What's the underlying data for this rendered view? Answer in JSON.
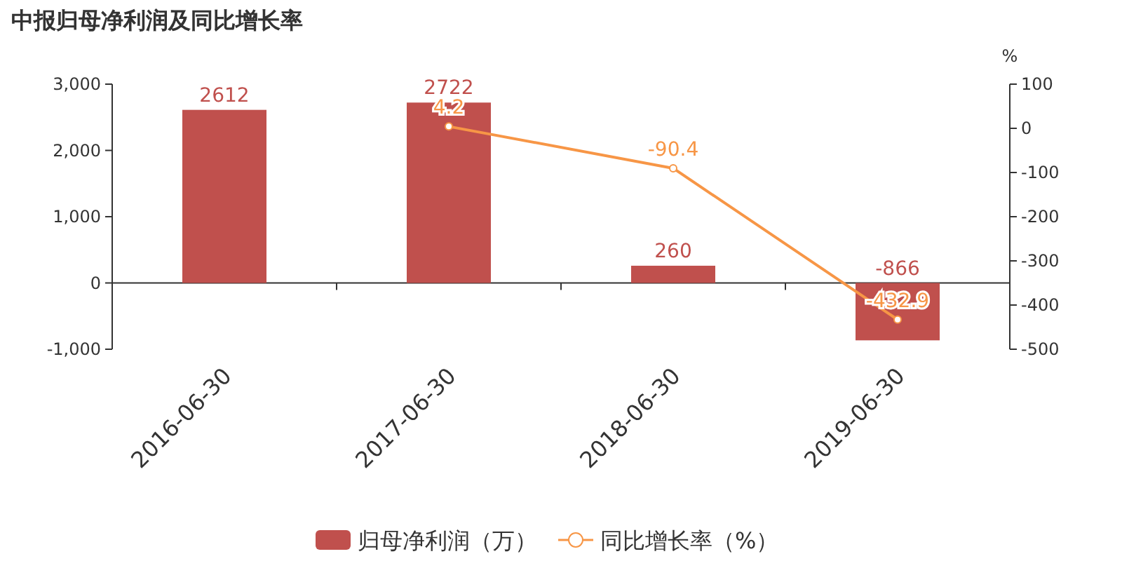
{
  "chart_data": {
    "type": "bar",
    "title": "中报归母净利润及同比增长率",
    "categories": [
      "2016-06-30",
      "2017-06-30",
      "2018-06-30",
      "2019-06-30"
    ],
    "series": [
      {
        "name": "归母净利润（万）",
        "color": "#c0504d",
        "values": [
          2612,
          2722,
          260,
          -866
        ]
      },
      {
        "name": "同比增长率（%）",
        "type": "line",
        "axis": "y2",
        "color": "#f79646",
        "marker": "circle",
        "values": [
          null,
          4.2,
          -90.4,
          -432.9
        ]
      }
    ],
    "y2label": "%",
    "ylim": [
      -1000,
      3000
    ],
    "yticks": [
      {
        "value": -1000,
        "label": "-1,000"
      },
      0,
      {
        "value": 1000,
        "label": "1,000"
      },
      {
        "value": 2000,
        "label": "2,000"
      },
      {
        "value": 3000,
        "label": "3,000"
      }
    ],
    "y2lim": [
      -500,
      100
    ],
    "y2ticks": [
      -500,
      -400,
      -300,
      -200,
      -100,
      0,
      100
    ],
    "data_labels": true,
    "legend": "bottom"
  }
}
